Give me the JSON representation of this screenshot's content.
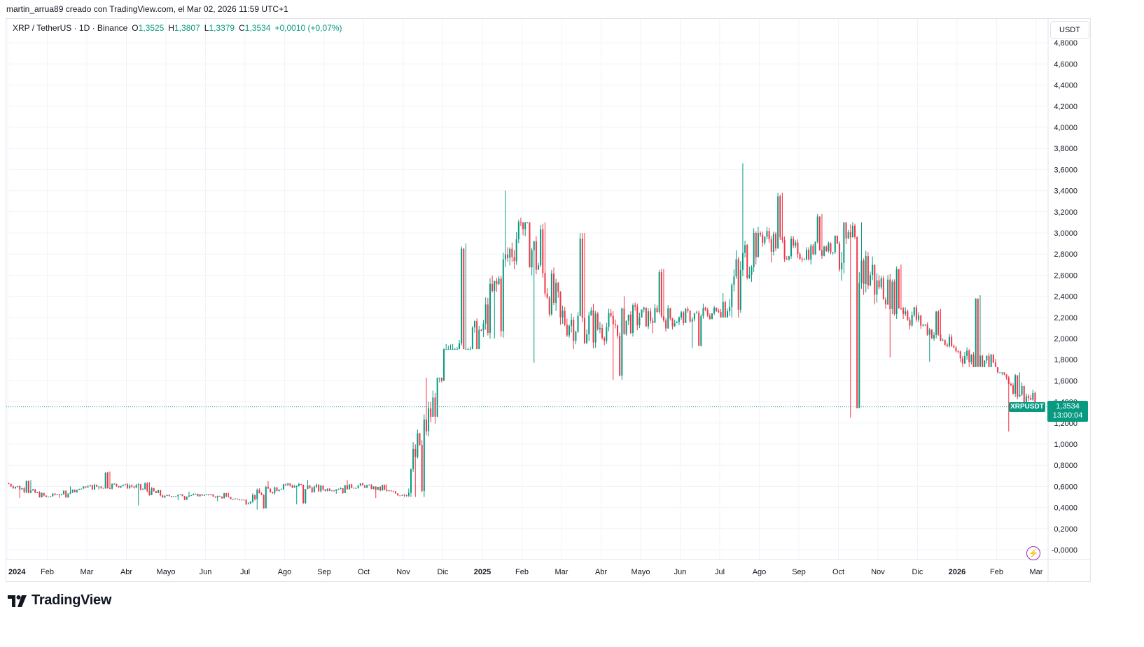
{
  "header": {
    "text": "martin_arrua89 creado con TradingView.com, el Mar 02, 2026 11:59 UTC+1"
  },
  "legend": {
    "symbol": "XRP / TetherUS · 1D · Binance",
    "open_label": "O",
    "open": "1,3525",
    "high_label": "H",
    "high": "1,3807",
    "low_label": "L",
    "low": "1,3379",
    "close_label": "C",
    "close": "1,3534",
    "change": "+0,0010 (+0,07%)"
  },
  "currency_button": "USDT",
  "price_tag": {
    "symbol": "XRPUSDT",
    "price": "1,3534",
    "countdown": "13:00:04"
  },
  "brand": {
    "name": "TradingView"
  },
  "icons": {
    "flash": "lightning-icon",
    "logo": "tradingview-logo-icon"
  },
  "colors": {
    "up": "#089981",
    "down": "#f23645",
    "grid": "#f0f3fa",
    "last_price": "#089981",
    "flash": "#9c27b0"
  },
  "chart_data": {
    "type": "candlestick",
    "timeframe": "1D",
    "y_ticks": [
      "-0,0000",
      "0,2000",
      "0,4000",
      "0,6000",
      "0,8000",
      "1,0000",
      "1,2000",
      "1,4000",
      "1,6000",
      "1,8000",
      "2,0000",
      "2,2000",
      "2,4000",
      "2,6000",
      "2,8000",
      "3,0000",
      "3,2000",
      "3,4000",
      "3,6000",
      "3,8000",
      "4,0000",
      "4,2000",
      "4,4000",
      "4,6000",
      "4,8000"
    ],
    "y_tick_values": [
      0,
      0.2,
      0.4,
      0.6,
      0.8,
      1.0,
      1.2,
      1.4,
      1.6,
      1.8,
      2.0,
      2.2,
      2.4,
      2.6,
      2.8,
      3.0,
      3.2,
      3.4,
      3.6,
      3.8,
      4.0,
      4.2,
      4.4,
      4.6,
      4.8
    ],
    "x_ticks": [
      {
        "label": "2024",
        "month": 0,
        "bold": true
      },
      {
        "label": "Feb",
        "month": 1
      },
      {
        "label": "Mar",
        "month": 2
      },
      {
        "label": "Abr",
        "month": 3
      },
      {
        "label": "Mayo",
        "month": 4
      },
      {
        "label": "Jun",
        "month": 5
      },
      {
        "label": "Jul",
        "month": 6
      },
      {
        "label": "Ago",
        "month": 7
      },
      {
        "label": "Sep",
        "month": 8
      },
      {
        "label": "Oct",
        "month": 9
      },
      {
        "label": "Nov",
        "month": 10
      },
      {
        "label": "Dic",
        "month": 11
      },
      {
        "label": "2025",
        "month": 12,
        "bold": true
      },
      {
        "label": "Feb",
        "month": 13
      },
      {
        "label": "Mar",
        "month": 14
      },
      {
        "label": "Abr",
        "month": 15
      },
      {
        "label": "Mayo",
        "month": 16
      },
      {
        "label": "Jun",
        "month": 17
      },
      {
        "label": "Jul",
        "month": 18
      },
      {
        "label": "Ago",
        "month": 19
      },
      {
        "label": "Sep",
        "month": 20
      },
      {
        "label": "Oct",
        "month": 21
      },
      {
        "label": "Nov",
        "month": 22
      },
      {
        "label": "Dic",
        "month": 23
      },
      {
        "label": "2026",
        "month": 24,
        "bold": true
      },
      {
        "label": "Feb",
        "month": 25
      },
      {
        "label": "Mar",
        "month": 26
      }
    ],
    "ylim": [
      0,
      4.8
    ],
    "last_price": 1.3534,
    "monthly_ohlc": [
      {
        "month": "2024-01",
        "o": 0.63,
        "h": 0.66,
        "l": 0.49,
        "c": 0.5
      },
      {
        "month": "2024-02",
        "o": 0.5,
        "h": 0.6,
        "l": 0.49,
        "c": 0.59
      },
      {
        "month": "2024-03",
        "o": 0.59,
        "h": 0.74,
        "l": 0.57,
        "c": 0.62
      },
      {
        "month": "2024-04",
        "o": 0.62,
        "h": 0.64,
        "l": 0.42,
        "c": 0.51
      },
      {
        "month": "2024-05",
        "o": 0.51,
        "h": 0.55,
        "l": 0.47,
        "c": 0.52
      },
      {
        "month": "2024-06",
        "o": 0.52,
        "h": 0.54,
        "l": 0.46,
        "c": 0.47
      },
      {
        "month": "2024-07",
        "o": 0.47,
        "h": 0.65,
        "l": 0.38,
        "c": 0.62
      },
      {
        "month": "2024-08",
        "o": 0.62,
        "h": 0.66,
        "l": 0.43,
        "c": 0.57
      },
      {
        "month": "2024-09",
        "o": 0.57,
        "h": 0.66,
        "l": 0.53,
        "c": 0.61
      },
      {
        "month": "2024-10",
        "o": 0.61,
        "h": 0.62,
        "l": 0.49,
        "c": 0.52
      },
      {
        "month": "2024-11",
        "o": 0.52,
        "h": 1.63,
        "l": 0.5,
        "c": 1.6
      },
      {
        "month": "2024-12",
        "o": 1.6,
        "h": 2.9,
        "l": 1.9,
        "c": 2.08
      },
      {
        "month": "2025-01",
        "o": 2.08,
        "h": 3.4,
        "l": 2.0,
        "c": 3.1
      },
      {
        "month": "2025-02",
        "o": 3.1,
        "h": 3.1,
        "l": 1.77,
        "c": 2.2
      },
      {
        "month": "2025-03",
        "o": 2.2,
        "h": 3.0,
        "l": 1.9,
        "c": 2.1
      },
      {
        "month": "2025-04",
        "o": 2.1,
        "h": 2.4,
        "l": 1.61,
        "c": 2.2
      },
      {
        "month": "2025-05",
        "o": 2.2,
        "h": 2.66,
        "l": 2.05,
        "c": 2.2
      },
      {
        "month": "2025-06",
        "o": 2.2,
        "h": 2.33,
        "l": 1.91,
        "c": 2.25
      },
      {
        "month": "2025-07",
        "o": 2.25,
        "h": 3.66,
        "l": 2.2,
        "c": 3.0
      },
      {
        "month": "2025-08",
        "o": 3.0,
        "h": 3.38,
        "l": 2.72,
        "c": 2.8
      },
      {
        "month": "2025-09",
        "o": 2.8,
        "h": 3.18,
        "l": 2.7,
        "c": 2.9
      },
      {
        "month": "2025-10",
        "o": 2.9,
        "h": 3.1,
        "l": 1.25,
        "c": 2.55
      },
      {
        "month": "2025-11",
        "o": 2.55,
        "h": 2.7,
        "l": 1.82,
        "c": 2.18
      },
      {
        "month": "2025-12",
        "o": 2.18,
        "h": 2.28,
        "l": 1.78,
        "c": 1.88
      },
      {
        "month": "2026-01",
        "o": 1.88,
        "h": 2.41,
        "l": 1.73,
        "c": 1.73
      },
      {
        "month": "2026-02",
        "o": 1.73,
        "h": 1.68,
        "l": 1.12,
        "c": 1.38
      },
      {
        "month": "2026-03",
        "o": 1.35,
        "h": 1.38,
        "l": 1.34,
        "c": 1.35
      }
    ]
  }
}
